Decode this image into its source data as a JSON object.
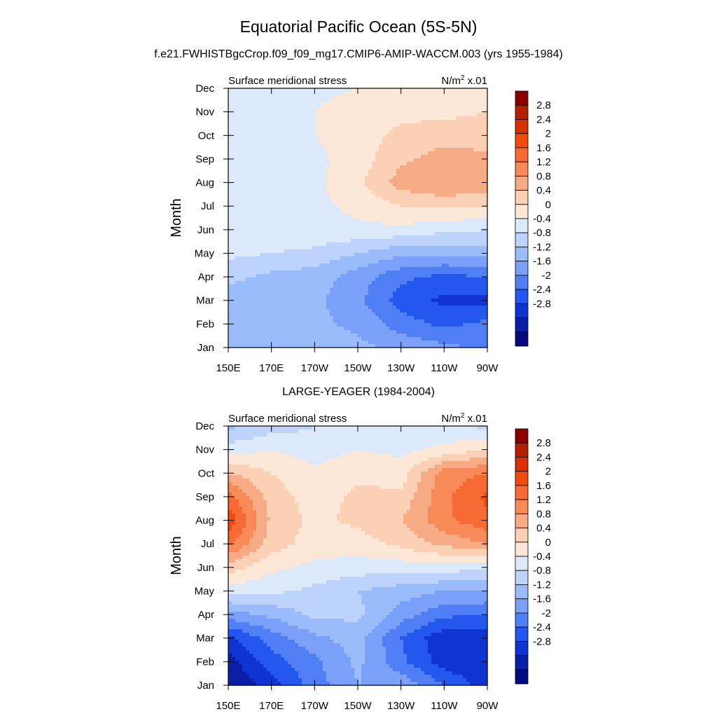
{
  "figure": {
    "title": "Equatorial Pacific Ocean (5S-5N)",
    "subtitle": "f.e21.FWHISTBgcCrop.f09_f09_mg17.CMIP6-AMIP-WACCM.003 (yrs 1955-1984)"
  },
  "colorbar": {
    "labels": [
      "2.8",
      "2.4",
      "2",
      "1.6",
      "1.2",
      "0.8",
      "0.4",
      "0",
      "-0.4",
      "-0.8",
      "-1.2",
      "-1.6",
      "-2",
      "-2.4",
      "-2.8"
    ],
    "colors": [
      "#8b0000",
      "#b22000",
      "#d83000",
      "#f24a0b",
      "#f76a33",
      "#f88a57",
      "#f7ab84",
      "#fbd0b4",
      "#fde8d8",
      "#dbe9fb",
      "#bdd3fb",
      "#9bbcfb",
      "#7aa0f9",
      "#4f7ef5",
      "#2357ee",
      "#0f34d2",
      "#0a1ea6",
      "#040a80"
    ]
  },
  "chart_data": [
    {
      "type": "heatmap",
      "title": "f.e21.FWHISTBgcCrop.f09_f09_mg17.CMIP6-AMIP-WACCM.003 (yrs 1955-1984)",
      "left_label": "Surface meridional stress",
      "units_label": "N/m",
      "units_sup": "2",
      "units_scale": " x.01",
      "ylabel": "Month",
      "xticks": [
        "150E",
        "170E",
        "170W",
        "150W",
        "130W",
        "110W",
        "90W"
      ],
      "yticks": [
        "Jan",
        "Feb",
        "Mar",
        "Apr",
        "May",
        "Jun",
        "Jul",
        "Aug",
        "Sep",
        "Oct",
        "Nov",
        "Dec"
      ],
      "x": [
        150,
        170,
        190,
        210,
        230,
        250,
        270
      ],
      "y": [
        "Jan",
        "Feb",
        "Mar",
        "Apr",
        "May",
        "Jun",
        "Jul",
        "Aug",
        "Sep",
        "Oct",
        "Nov",
        "Dec"
      ],
      "z": [
        [
          -0.6,
          -0.6,
          -0.6,
          -0.7,
          -0.9,
          -1.1,
          -1.3
        ],
        [
          -0.6,
          -0.7,
          -0.7,
          -0.9,
          -1.4,
          -1.7,
          -1.5
        ],
        [
          -0.6,
          -0.7,
          -0.7,
          -1.1,
          -1.8,
          -2.1,
          -2.1
        ],
        [
          -0.3,
          -0.5,
          -0.6,
          -1.0,
          -1.5,
          -1.7,
          -1.6
        ],
        [
          0.1,
          0.0,
          -0.1,
          -0.4,
          -0.7,
          -0.7,
          -0.6
        ],
        [
          0.3,
          0.3,
          0.3,
          0.3,
          0.3,
          0.1,
          0.0
        ],
        [
          0.4,
          0.3,
          0.3,
          0.5,
          0.8,
          0.9,
          0.8
        ],
        [
          0.4,
          0.3,
          0.3,
          0.7,
          1.4,
          1.6,
          1.5
        ],
        [
          0.3,
          0.3,
          0.3,
          0.6,
          1.1,
          1.4,
          1.3
        ],
        [
          0.3,
          0.3,
          0.4,
          0.6,
          0.9,
          1.0,
          1.0
        ],
        [
          0.2,
          0.3,
          0.4,
          0.6,
          0.7,
          0.7,
          0.8
        ],
        [
          0.0,
          0.1,
          0.3,
          0.4,
          0.5,
          0.5,
          0.6
        ]
      ]
    },
    {
      "type": "heatmap",
      "title": "LARGE-YEAGER (1984-2004)",
      "left_label": "Surface meridional stress",
      "units_label": "N/m",
      "units_sup": "2",
      "units_scale": " x.01",
      "ylabel": "Month",
      "xticks": [
        "150E",
        "170E",
        "170W",
        "150W",
        "130W",
        "110W",
        "90W"
      ],
      "yticks": [
        "Jan",
        "Feb",
        "Mar",
        "Apr",
        "May",
        "Jun",
        "Jul",
        "Aug",
        "Sep",
        "Oct",
        "Nov",
        "Dec"
      ],
      "x": [
        150,
        170,
        190,
        210,
        230,
        250,
        270
      ],
      "y": [
        "Jan",
        "Feb",
        "Mar",
        "Apr",
        "May",
        "Jun",
        "Jul",
        "Aug",
        "Sep",
        "Oct",
        "Nov",
        "Dec"
      ],
      "z": [
        [
          -2.8,
          -2.2,
          -1.4,
          -0.8,
          -0.9,
          -1.6,
          -2.2
        ],
        [
          -2.6,
          -1.8,
          -1.3,
          -0.7,
          -1.5,
          -2.2,
          -2.4
        ],
        [
          -2.1,
          -1.4,
          -0.9,
          -0.6,
          -1.6,
          -2.3,
          -2.3
        ],
        [
          -1.0,
          -0.7,
          -0.3,
          -0.3,
          -1.0,
          -1.5,
          -1.6
        ],
        [
          0.2,
          0.1,
          -0.1,
          -0.4,
          -0.6,
          -0.8,
          -0.8
        ],
        [
          1.0,
          0.5,
          0.3,
          0.2,
          0.2,
          0.2,
          0.1
        ],
        [
          2.1,
          1.0,
          0.6,
          0.6,
          0.9,
          1.3,
          1.6
        ],
        [
          2.7,
          1.1,
          0.7,
          0.9,
          1.2,
          1.9,
          2.3
        ],
        [
          2.2,
          1.0,
          0.6,
          0.9,
          0.9,
          1.9,
          2.5
        ],
        [
          1.2,
          0.8,
          0.5,
          0.7,
          0.6,
          1.8,
          2.0
        ],
        [
          0.2,
          0.4,
          0.2,
          0.4,
          0.3,
          0.5,
          0.8
        ],
        [
          -0.5,
          -0.2,
          0.0,
          0.1,
          0.2,
          0.1,
          -0.1
        ]
      ]
    }
  ]
}
